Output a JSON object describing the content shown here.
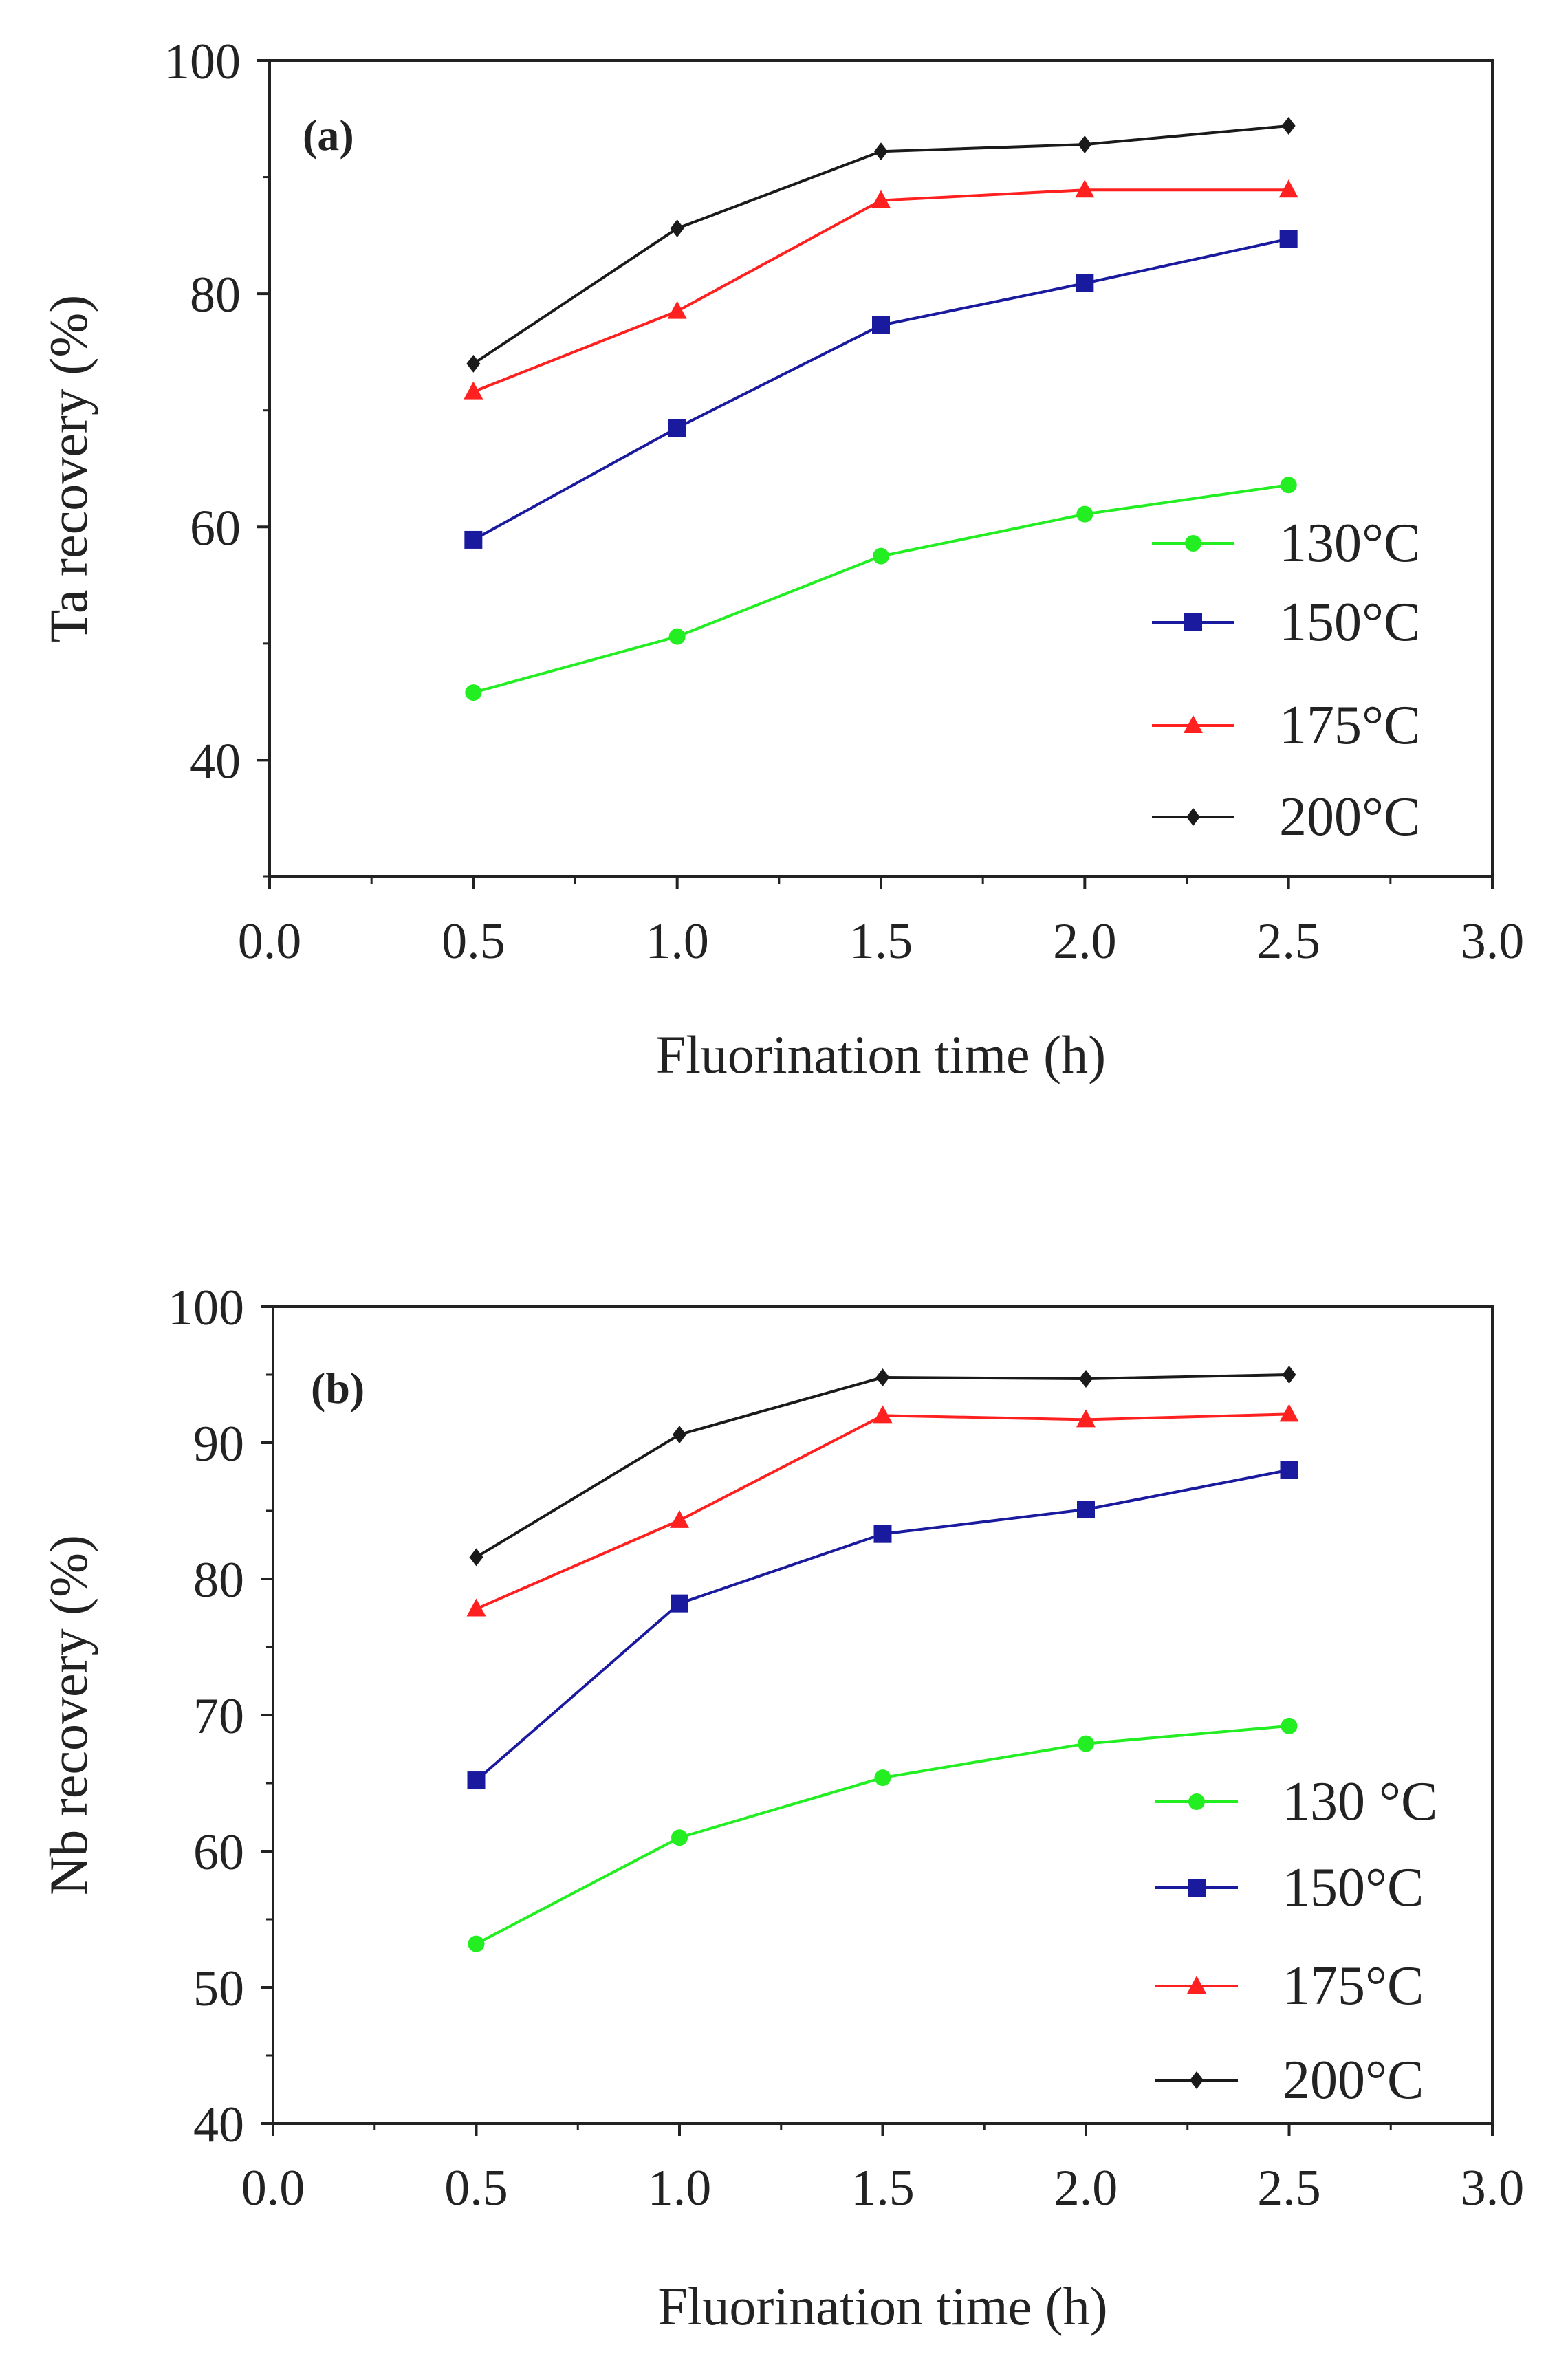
{
  "chart_data": [
    {
      "type": "line",
      "panel_label": "(a)",
      "xlabel": "Fluorination time (h)",
      "ylabel": "Ta recovery (%)",
      "xlim": [
        0.0,
        3.0
      ],
      "ylim": [
        30,
        100
      ],
      "xticks": [
        0.0,
        0.5,
        1.0,
        1.5,
        2.0,
        2.5,
        3.0
      ],
      "xtick_labels": [
        "0.0",
        "0.5",
        "1.0",
        "1.5",
        "2.0",
        "2.5",
        "3.0"
      ],
      "yticks": [
        40,
        60,
        80,
        100
      ],
      "ytick_labels": [
        "40",
        "60",
        "80",
        "100"
      ],
      "y_minor_step": 10,
      "x": [
        0.5,
        1.0,
        1.5,
        2.0,
        2.5
      ],
      "legend_position": "bottom-right",
      "series": [
        {
          "name": "130°C",
          "color": "#22ee22",
          "marker": "circle",
          "values": [
            45.8,
            50.6,
            57.5,
            61.1,
            63.6
          ]
        },
        {
          "name": "150°C",
          "color": "#1a1a9e",
          "marker": "square",
          "values": [
            58.9,
            68.5,
            77.3,
            80.9,
            84.7
          ]
        },
        {
          "name": "175°C",
          "color": "#ff2020",
          "marker": "triangle",
          "values": [
            71.6,
            78.5,
            88.0,
            88.9,
            88.9
          ]
        },
        {
          "name": "200°C",
          "color": "#1a1a1a",
          "marker": "diamond",
          "values": [
            74.0,
            85.6,
            92.2,
            92.8,
            94.4
          ]
        }
      ]
    },
    {
      "type": "line",
      "panel_label": "(b)",
      "xlabel": "Fluorination time (h)",
      "ylabel": "Nb recovery (%)",
      "xlim": [
        0.0,
        3.0
      ],
      "ylim": [
        40,
        100
      ],
      "xticks": [
        0.0,
        0.5,
        1.0,
        1.5,
        2.0,
        2.5,
        3.0
      ],
      "xtick_labels": [
        "0.0",
        "0.5",
        "1.0",
        "1.5",
        "2.0",
        "2.5",
        "3.0"
      ],
      "yticks": [
        40,
        50,
        60,
        70,
        80,
        90,
        100
      ],
      "ytick_labels": [
        "40",
        "50",
        "60",
        "70",
        "80",
        "90",
        "100"
      ],
      "y_minor_step": 5,
      "x": [
        0.5,
        1.0,
        1.5,
        2.0,
        2.5
      ],
      "legend_position": "bottom-right",
      "series": [
        {
          "name": "130 °C",
          "color": "#22ee22",
          "marker": "circle",
          "values": [
            53.2,
            61.0,
            65.4,
            67.9,
            69.2
          ]
        },
        {
          "name": "150°C",
          "color": "#1a1a9e",
          "marker": "square",
          "values": [
            65.2,
            78.2,
            83.3,
            85.1,
            88.0
          ]
        },
        {
          "name": "175°C",
          "color": "#ff2020",
          "marker": "triangle",
          "values": [
            77.8,
            84.3,
            92.0,
            91.7,
            92.1
          ]
        },
        {
          "name": "200°C",
          "color": "#1a1a1a",
          "marker": "diamond",
          "values": [
            81.6,
            90.6,
            94.8,
            94.7,
            95.0
          ]
        }
      ]
    }
  ]
}
